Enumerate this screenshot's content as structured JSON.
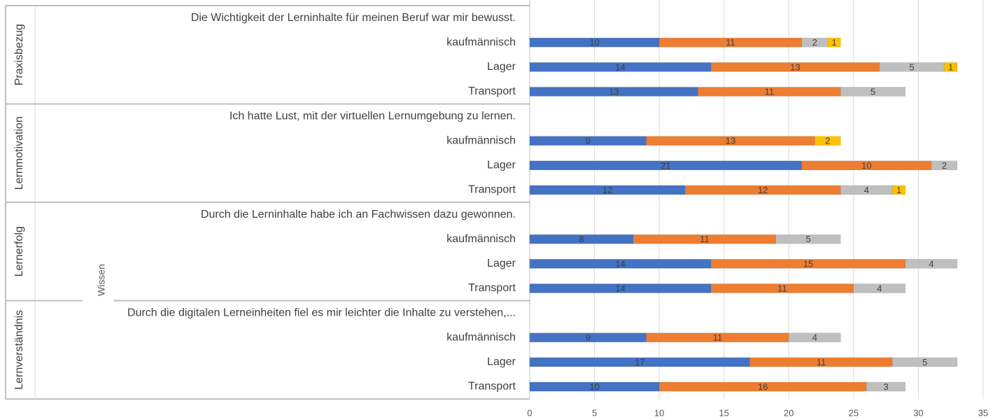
{
  "chart_data": {
    "type": "stacked-hbar",
    "categories": [
      "Die Wichtigkeit der Lerninhalte für meinen Beruf war mir bewusst.",
      "kaufmännisch",
      "Lager",
      "Transport",
      "Ich hatte Lust, mit der virtuellen Lernumgebung zu lernen.",
      "kaufmännisch",
      "Lager",
      "Transport",
      "Durch die Lerninhalte habe ich an Fachwissen dazu gewonnen.",
      "kaufmännisch",
      "Lager",
      "Transport",
      "Durch die digitalen Lerneinheiten fiel es mir leichter die Inhalte zu verstehen,...",
      "kaufmännisch",
      "Lager",
      "Transport"
    ],
    "groups": [
      "Praxisbezug",
      "Lernmotivation",
      "Lernerfolg",
      "Lernverständnis"
    ],
    "overlay_label": "Wissen",
    "series": [
      {
        "color": "#4472c4",
        "values": [
          null,
          10,
          14,
          13,
          null,
          9,
          21,
          12,
          null,
          8,
          14,
          14,
          null,
          9,
          17,
          10
        ]
      },
      {
        "color": "#ed7d31",
        "values": [
          null,
          11,
          13,
          11,
          null,
          13,
          10,
          12,
          null,
          11,
          15,
          11,
          null,
          11,
          11,
          16
        ]
      },
      {
        "color": "#bfbfbf",
        "values": [
          null,
          2,
          5,
          5,
          null,
          null,
          2,
          4,
          null,
          5,
          4,
          4,
          null,
          4,
          5,
          3
        ]
      },
      {
        "color": "#ffc000",
        "values": [
          null,
          1,
          1,
          null,
          null,
          2,
          null,
          1,
          null,
          null,
          null,
          null,
          null,
          null,
          null,
          null
        ]
      }
    ],
    "xlim": [
      0,
      35
    ],
    "xticks": [
      0,
      5,
      10,
      15,
      20,
      25,
      30,
      35
    ],
    "grid": true
  }
}
